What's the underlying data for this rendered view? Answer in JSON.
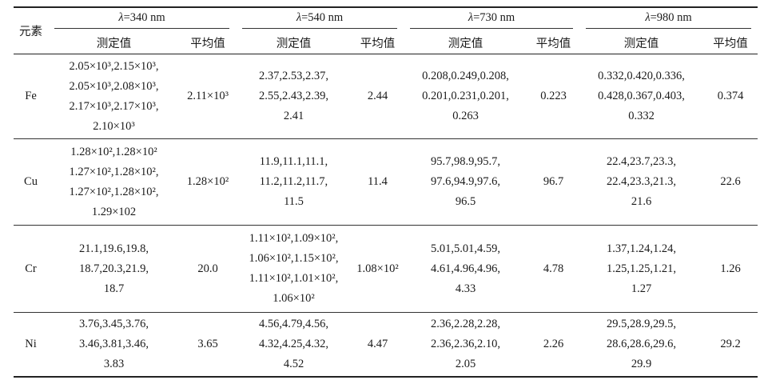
{
  "header": {
    "element_col": "元素",
    "measured_label": "测定值",
    "average_label": "平均值",
    "wavelengths": [
      {
        "symbol": "λ",
        "value": "=340 nm"
      },
      {
        "symbol": "λ",
        "value": "=540 nm"
      },
      {
        "symbol": "λ",
        "value": "=730 nm"
      },
      {
        "symbol": "λ",
        "value": "=980 nm"
      }
    ]
  },
  "rows": [
    {
      "element": "Fe",
      "groups": [
        {
          "measured": [
            "2.05×10³,2.15×10³,",
            "2.05×10³,2.08×10³,",
            "2.17×10³,2.17×10³,",
            "2.10×10³"
          ],
          "average": "2.11×10³"
        },
        {
          "measured": [
            "2.37,2.53,2.37,",
            "2.55,2.43,2.39,",
            "2.41"
          ],
          "average": "2.44"
        },
        {
          "measured": [
            "0.208,0.249,0.208,",
            "0.201,0.231,0.201,",
            "0.263"
          ],
          "average": "0.223"
        },
        {
          "measured": [
            "0.332,0.420,0.336,",
            "0.428,0.367,0.403,",
            "0.332"
          ],
          "average": "0.374"
        }
      ]
    },
    {
      "element": "Cu",
      "groups": [
        {
          "measured": [
            "1.28×10²,1.28×10²",
            "1.27×10²,1.28×10²,",
            "1.27×10²,1.28×10²,",
            "1.29×102"
          ],
          "average": "1.28×10²"
        },
        {
          "measured": [
            "11.9,11.1,11.1,",
            "11.2,11.2,11.7,",
            "11.5"
          ],
          "average": "11.4"
        },
        {
          "measured": [
            "95.7,98.9,95.7,",
            "97.6,94.9,97.6,",
            "96.5"
          ],
          "average": "96.7"
        },
        {
          "measured": [
            "22.4,23.7,23.3,",
            "22.4,23.3,21.3,",
            "21.6"
          ],
          "average": "22.6"
        }
      ]
    },
    {
      "element": "Cr",
      "groups": [
        {
          "measured": [
            "21.1,19.6,19.8,",
            "18.7,20.3,21.9,",
            "18.7"
          ],
          "average": "20.0"
        },
        {
          "measured": [
            "1.11×10²,1.09×10²,",
            "1.06×10²,1.15×10²,",
            "1.11×10²,1.01×10²,",
            "1.06×10²"
          ],
          "average": "1.08×10²"
        },
        {
          "measured": [
            "5.01,5.01,4.59,",
            "4.61,4.96,4.96,",
            "4.33"
          ],
          "average": "4.78"
        },
        {
          "measured": [
            "1.37,1.24,1.24,",
            "1.25,1.25,1.21,",
            "1.27"
          ],
          "average": "1.26"
        }
      ]
    },
    {
      "element": "Ni",
      "groups": [
        {
          "measured": [
            "3.76,3.45,3.76,",
            "3.46,3.81,3.46,",
            "3.83"
          ],
          "average": "3.65"
        },
        {
          "measured": [
            "4.56,4.79,4.56,",
            "4.32,4.25,4.32,",
            "4.52"
          ],
          "average": "4.47"
        },
        {
          "measured": [
            "2.36,2.28,2.28,",
            "2.36,2.36,2.10,",
            "2.05"
          ],
          "average": "2.26"
        },
        {
          "measured": [
            "29.5,28.9,29.5,",
            "28.6,28.6,29.6,",
            "29.9"
          ],
          "average": "29.2"
        }
      ]
    }
  ]
}
